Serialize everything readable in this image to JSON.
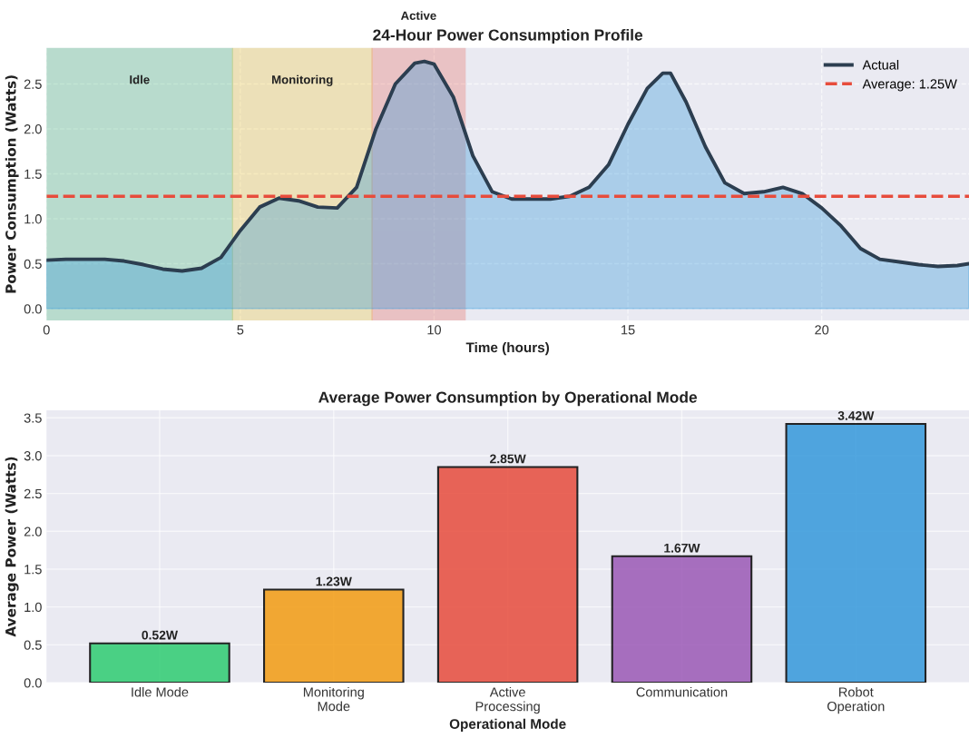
{
  "chart_data": [
    {
      "type": "area",
      "title": "24-Hour Power Consumption Profile",
      "xlabel": "Time (hours)",
      "ylabel": "Power Consumption (Watts)",
      "x": [
        0,
        0.5,
        1,
        1.5,
        2,
        2.5,
        3,
        3.5,
        4,
        4.5,
        5,
        5.5,
        6,
        6.5,
        7,
        7.5,
        8,
        8.5,
        9,
        9.5,
        9.75,
        10,
        10.5,
        11,
        11.5,
        12,
        13,
        13.5,
        14,
        14.5,
        15,
        15.5,
        15.9,
        16.1,
        16.5,
        17,
        17.5,
        18,
        18.5,
        19,
        19.5,
        20,
        20.5,
        21,
        21.5,
        22,
        22.5,
        23,
        23.5,
        23.8
      ],
      "series": [
        {
          "name": "Actual",
          "color": "#2c3e50",
          "values": [
            0.54,
            0.55,
            0.55,
            0.55,
            0.53,
            0.49,
            0.44,
            0.42,
            0.45,
            0.57,
            0.87,
            1.13,
            1.23,
            1.2,
            1.13,
            1.12,
            1.35,
            2.0,
            2.5,
            2.73,
            2.75,
            2.72,
            2.35,
            1.7,
            1.3,
            1.22,
            1.22,
            1.25,
            1.35,
            1.6,
            2.05,
            2.45,
            2.62,
            2.62,
            2.3,
            1.8,
            1.4,
            1.28,
            1.3,
            1.35,
            1.28,
            1.12,
            0.92,
            0.67,
            0.55,
            0.52,
            0.49,
            0.47,
            0.48,
            0.5
          ]
        }
      ],
      "ref_lines": [
        {
          "axis": "y",
          "value": 1.25,
          "label": "Average: 1.25W",
          "color": "#e74c3c",
          "line_style": "dashed"
        }
      ],
      "bands": [
        {
          "axis": "x",
          "from": 0,
          "to": 4.8,
          "label": "Idle",
          "color": "#27ae60"
        },
        {
          "axis": "x",
          "from": 4.8,
          "to": 8.4,
          "label": "Monitoring",
          "color": "#f1c40f"
        },
        {
          "axis": "x",
          "from": 8.4,
          "to": 10.8,
          "label": "Active",
          "color": "#e74c3c"
        }
      ],
      "xlim": [
        0,
        23.8
      ],
      "ylim": [
        -0.13,
        2.9
      ],
      "xticks": [
        0,
        5,
        10,
        15,
        20
      ],
      "yticks": [
        {
          "value": 0,
          "label": "0.0"
        },
        0.5,
        {
          "value": 1,
          "label": "1.0"
        },
        1.5,
        {
          "value": 2,
          "label": "2.0"
        },
        2.5
      ],
      "grid": true,
      "legend": "top right",
      "line_style": "solid",
      "marker": "none"
    },
    {
      "type": "bar",
      "title": "Average Power Consumption by Operational Mode",
      "xlabel": "Operational Mode",
      "ylabel": "Average Power (Watts)",
      "categories": [
        "Idle Mode",
        "Monitoring\nMode",
        "Active\nProcessing",
        "Communication",
        "Robot\nOperation"
      ],
      "values": [
        0.52,
        1.23,
        2.85,
        1.67,
        3.42
      ],
      "colors": [
        "#2ecc71",
        "#f39c12",
        "#e74c3c",
        "#9b59b6",
        "#3498db"
      ],
      "value_labels": [
        "0.52W",
        "1.23W",
        "2.85W",
        "1.67W",
        "3.42W"
      ],
      "ylim": [
        0,
        3.6
      ],
      "yticks": [
        {
          "value": 0,
          "label": "0.0"
        },
        0.5,
        {
          "value": 1,
          "label": "1.0"
        },
        1.5,
        {
          "value": 2,
          "label": "2.0"
        },
        2.5,
        {
          "value": 3,
          "label": "3.0"
        },
        3.5
      ],
      "grid": true
    }
  ]
}
